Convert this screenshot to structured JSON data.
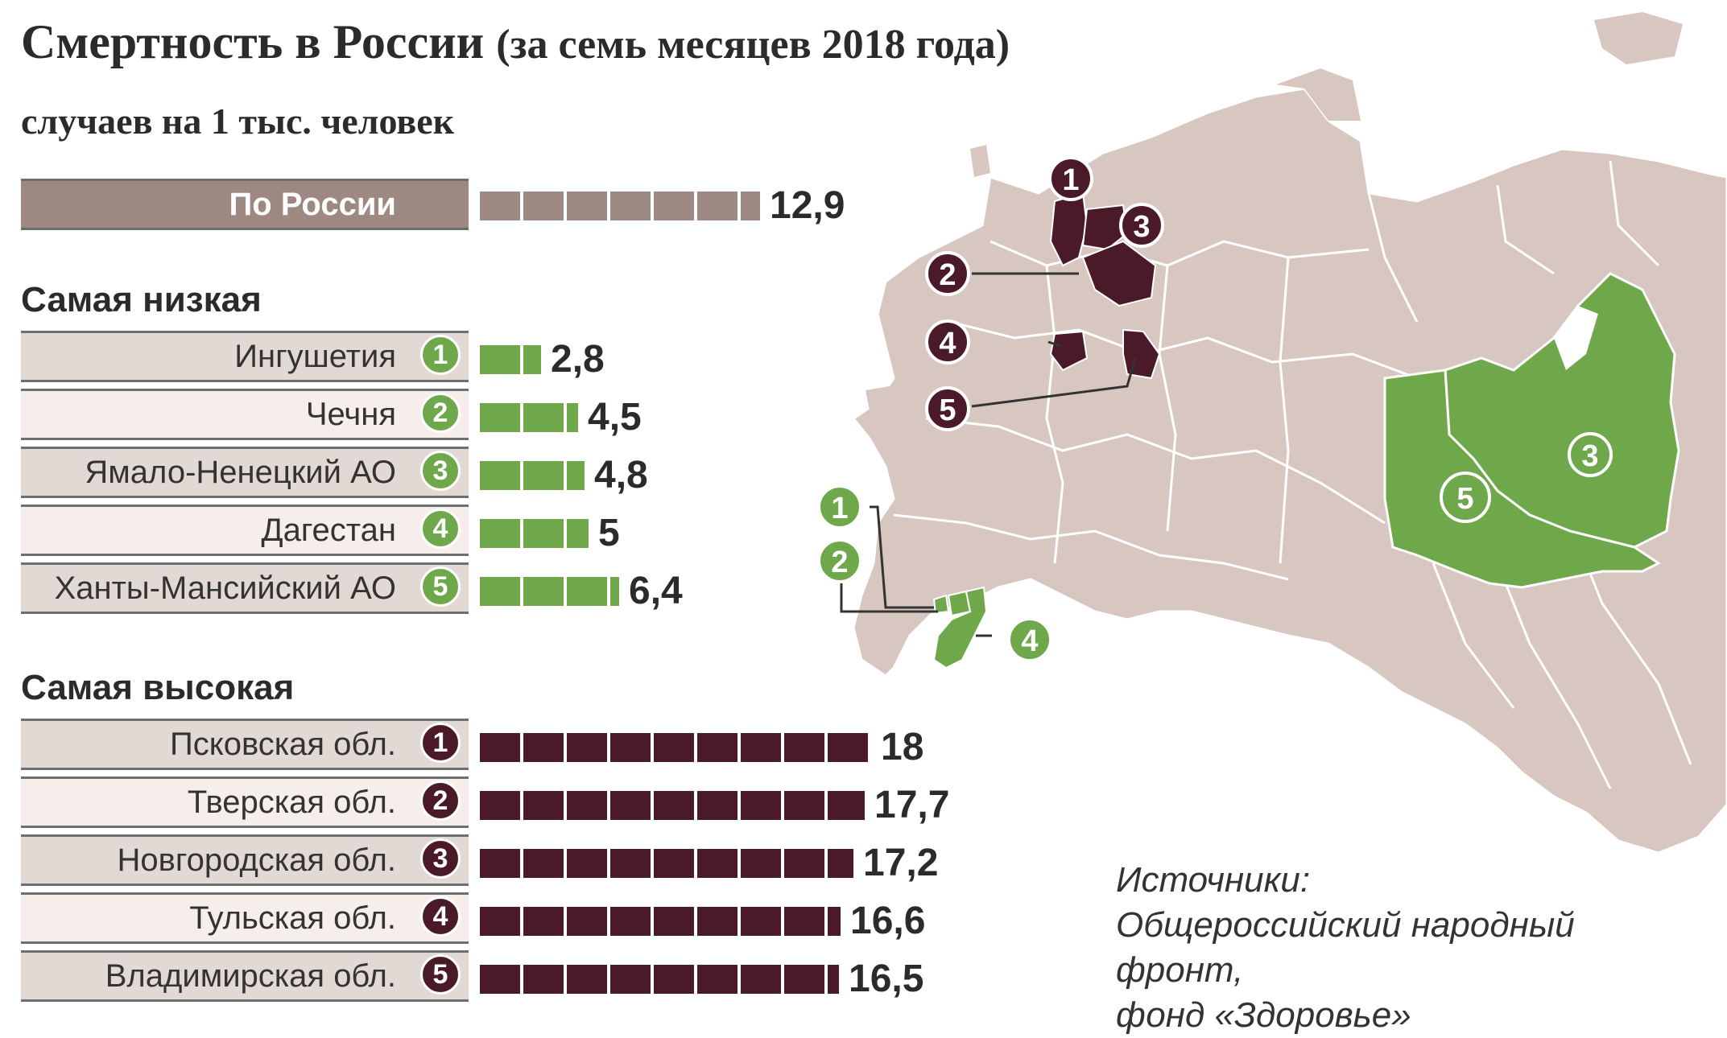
{
  "title": "Смертность в России",
  "title_note": "(за семь месяцев 2018 года)",
  "unit": "случаев на 1 тыс. человек",
  "colors": {
    "low": "#6fa84a",
    "high": "#4a1a28",
    "total": "#9d8882",
    "land": "#d8c6c0"
  },
  "chart_data": {
    "type": "bar",
    "orientation": "horizontal",
    "total": {
      "label": "По России",
      "value": 12.9,
      "value_text": "12,9"
    },
    "sections": [
      {
        "title": "Самая низкая",
        "kind": "low",
        "rows": [
          {
            "rank": "1",
            "label": "Ингушетия",
            "value": 2.8,
            "value_text": "2,8"
          },
          {
            "rank": "2",
            "label": "Чечня",
            "value": 4.5,
            "value_text": "4,5"
          },
          {
            "rank": "3",
            "label": "Ямало-Ненецкий АО",
            "value": 4.8,
            "value_text": "4,8"
          },
          {
            "rank": "4",
            "label": "Дагестан",
            "value": 5,
            "value_text": "5"
          },
          {
            "rank": "5",
            "label": "Ханты-Мансийский АО",
            "value": 6.4,
            "value_text": "6,4"
          }
        ]
      },
      {
        "title": "Самая высокая",
        "kind": "high",
        "rows": [
          {
            "rank": "1",
            "label": "Псковская обл.",
            "value": 18,
            "value_text": "18"
          },
          {
            "rank": "2",
            "label": "Тверская обл.",
            "value": 17.7,
            "value_text": "17,7"
          },
          {
            "rank": "3",
            "label": "Новгородская обл.",
            "value": 17.2,
            "value_text": "17,2"
          },
          {
            "rank": "4",
            "label": "Тульская обл.",
            "value": 16.6,
            "value_text": "16,6"
          },
          {
            "rank": "5",
            "label": "Владимирская обл.",
            "value": 16.5,
            "value_text": "16,5"
          }
        ]
      }
    ]
  },
  "map": {
    "high_markers": [
      "1",
      "2",
      "3",
      "4",
      "5"
    ],
    "low_markers": [
      "1",
      "2",
      "3",
      "4",
      "5"
    ]
  },
  "source": {
    "heading": "Источники:",
    "line1": "Общероссийский народный фронт,",
    "line2": "фонд «Здоровье»"
  }
}
